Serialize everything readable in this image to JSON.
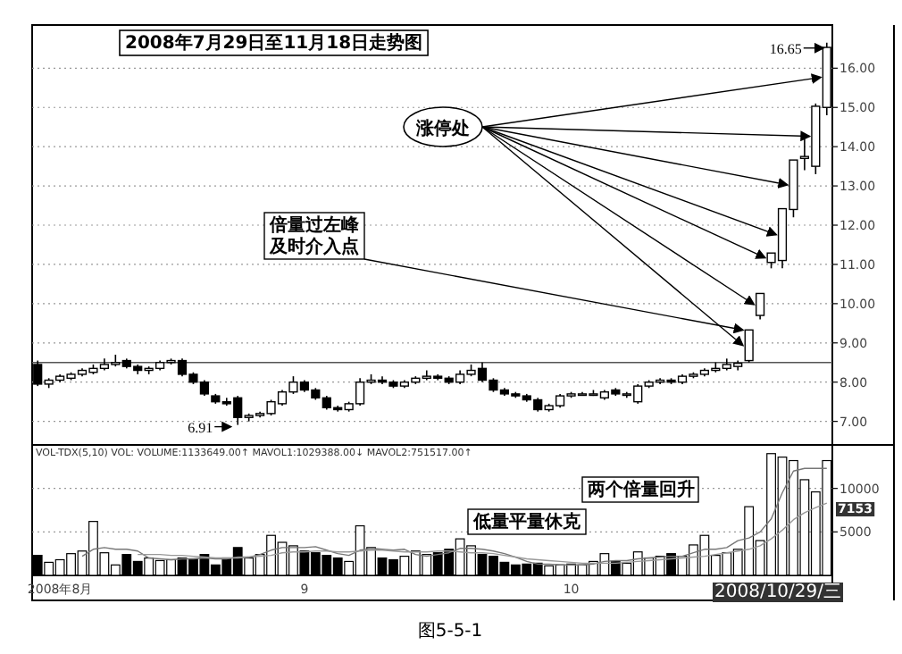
{
  "chart_data": [
    {
      "type": "candlestick",
      "title": "2008年7月29日至11月18日走势图",
      "categories": [
        null,
        null,
        null,
        null,
        null,
        null,
        null,
        null,
        null,
        null,
        null,
        null,
        null,
        null,
        null,
        null,
        null,
        null,
        null,
        null,
        null,
        null,
        null,
        null,
        null,
        null,
        null,
        null,
        null,
        null,
        null,
        null,
        null,
        null,
        null,
        null,
        null,
        null,
        null,
        null,
        null,
        null,
        null,
        null,
        null,
        null,
        null,
        null,
        null,
        null,
        null,
        null,
        null,
        null,
        null,
        null,
        null,
        null,
        null,
        null,
        null,
        null,
        null,
        null,
        null,
        null,
        null,
        null,
        null,
        null,
        null,
        null
      ],
      "ohlc": [
        [
          8.45,
          8.55,
          7.9,
          7.95
        ],
        [
          7.95,
          8.1,
          7.85,
          8.05
        ],
        [
          8.05,
          8.2,
          8.0,
          8.15
        ],
        [
          8.1,
          8.25,
          8.05,
          8.2
        ],
        [
          8.2,
          8.35,
          8.15,
          8.3
        ],
        [
          8.25,
          8.45,
          8.2,
          8.35
        ],
        [
          8.35,
          8.6,
          8.3,
          8.45
        ],
        [
          8.45,
          8.7,
          8.4,
          8.5
        ],
        [
          8.55,
          8.6,
          8.35,
          8.4
        ],
        [
          8.4,
          8.45,
          8.2,
          8.3
        ],
        [
          8.3,
          8.4,
          8.2,
          8.35
        ],
        [
          8.35,
          8.55,
          8.3,
          8.5
        ],
        [
          8.5,
          8.6,
          8.45,
          8.55
        ],
        [
          8.55,
          8.6,
          8.15,
          8.2
        ],
        [
          8.2,
          8.25,
          7.95,
          8.0
        ],
        [
          8.0,
          8.05,
          7.65,
          7.7
        ],
        [
          7.65,
          7.7,
          7.45,
          7.5
        ],
        [
          7.5,
          7.6,
          7.4,
          7.45
        ],
        [
          7.6,
          7.65,
          6.91,
          7.1
        ],
        [
          7.1,
          7.2,
          7.0,
          7.15
        ],
        [
          7.15,
          7.25,
          7.1,
          7.2
        ],
        [
          7.2,
          7.55,
          7.15,
          7.5
        ],
        [
          7.45,
          7.8,
          7.4,
          7.75
        ],
        [
          7.75,
          8.15,
          7.7,
          8.0
        ],
        [
          8.0,
          8.05,
          7.75,
          7.8
        ],
        [
          7.8,
          7.85,
          7.55,
          7.6
        ],
        [
          7.6,
          7.65,
          7.3,
          7.35
        ],
        [
          7.35,
          7.4,
          7.25,
          7.3
        ],
        [
          7.3,
          7.5,
          7.25,
          7.45
        ],
        [
          7.45,
          8.1,
          7.4,
          8.0
        ],
        [
          8.0,
          8.2,
          7.95,
          8.05
        ],
        [
          8.05,
          8.15,
          7.95,
          8.0
        ],
        [
          8.0,
          8.05,
          7.85,
          7.9
        ],
        [
          7.9,
          8.05,
          7.85,
          8.0
        ],
        [
          8.0,
          8.15,
          7.95,
          8.1
        ],
        [
          8.1,
          8.3,
          8.05,
          8.15
        ],
        [
          8.15,
          8.2,
          8.05,
          8.1
        ],
        [
          8.1,
          8.15,
          7.95,
          8.0
        ],
        [
          8.0,
          8.3,
          7.95,
          8.2
        ],
        [
          8.2,
          8.45,
          8.15,
          8.3
        ],
        [
          8.35,
          8.5,
          8.0,
          8.05
        ],
        [
          8.05,
          8.1,
          7.75,
          7.8
        ],
        [
          7.8,
          7.85,
          7.65,
          7.7
        ],
        [
          7.7,
          7.75,
          7.6,
          7.65
        ],
        [
          7.65,
          7.7,
          7.5,
          7.55
        ],
        [
          7.55,
          7.6,
          7.25,
          7.3
        ],
        [
          7.3,
          7.45,
          7.25,
          7.4
        ],
        [
          7.4,
          7.7,
          7.35,
          7.65
        ],
        [
          7.65,
          7.75,
          7.6,
          7.7
        ],
        [
          7.7,
          7.75,
          7.65,
          7.7
        ],
        [
          7.7,
          7.8,
          7.65,
          7.7
        ],
        [
          7.6,
          7.8,
          7.55,
          7.75
        ],
        [
          7.8,
          7.85,
          7.65,
          7.7
        ],
        [
          7.7,
          7.75,
          7.6,
          7.7
        ],
        [
          7.5,
          7.95,
          7.45,
          7.9
        ],
        [
          7.9,
          8.05,
          7.85,
          8.0
        ],
        [
          8.0,
          8.1,
          7.95,
          8.05
        ],
        [
          8.05,
          8.1,
          7.95,
          8.0
        ],
        [
          8.0,
          8.2,
          7.95,
          8.15
        ],
        [
          8.15,
          8.25,
          8.1,
          8.2
        ],
        [
          8.2,
          8.35,
          8.15,
          8.3
        ],
        [
          8.3,
          8.5,
          8.25,
          8.35
        ],
        [
          8.35,
          8.6,
          8.3,
          8.45
        ],
        [
          8.4,
          8.55,
          8.3,
          8.48
        ],
        [
          8.55,
          9.33,
          8.5,
          9.33
        ],
        [
          9.7,
          10.26,
          9.6,
          10.26
        ],
        [
          11.05,
          11.29,
          10.9,
          11.29
        ],
        [
          11.1,
          12.42,
          10.9,
          12.42
        ],
        [
          12.4,
          13.66,
          12.2,
          13.66
        ],
        [
          13.7,
          14.2,
          13.4,
          13.75
        ],
        [
          13.5,
          15.1,
          13.3,
          15.03
        ],
        [
          15.0,
          16.65,
          14.8,
          16.53
        ]
      ],
      "ylim": [
        6.4,
        17.1
      ],
      "yticks": [
        {
          "value": 7,
          "label": "7.00"
        },
        {
          "value": 8,
          "label": "8.00"
        },
        {
          "value": 9,
          "label": "9.00"
        },
        {
          "value": 10,
          "label": "10.00"
        },
        {
          "value": 11,
          "label": "11.00"
        },
        {
          "value": 12,
          "label": "12.00"
        },
        {
          "value": 13,
          "label": "13.00"
        },
        {
          "value": 14,
          "label": "14.00"
        },
        {
          "value": 15,
          "label": "15.00"
        },
        {
          "value": 16,
          "label": "16.00"
        }
      ],
      "grid": "y",
      "tick_labels": "y",
      "ref_lines": [
        {
          "axis": "y",
          "value": 8.5
        }
      ],
      "annotations": [
        "涨停处",
        "倍量过左峰及时介入点",
        "6.91",
        "16.65"
      ]
    },
    {
      "type": "bar",
      "subtitle": "VOL-TDX(5,10) VOL: VOLUME:1133649.00↑ MAVOL1:1029388.00↓ MAVOL2:751517.00↑",
      "categories": [
        null,
        null,
        "2008年8月",
        null,
        null,
        null,
        null,
        null,
        null,
        null,
        null,
        null,
        null,
        null,
        null,
        null,
        null,
        null,
        null,
        null,
        null,
        null,
        null,
        null,
        "9",
        null,
        null,
        null,
        null,
        null,
        null,
        null,
        null,
        null,
        null,
        null,
        null,
        null,
        null,
        null,
        null,
        null,
        null,
        null,
        null,
        null,
        null,
        null,
        "10",
        null,
        null,
        null,
        null,
        null,
        null,
        null,
        null,
        null,
        null,
        null,
        null,
        null,
        null,
        null,
        null,
        null,
        null,
        null,
        null,
        null,
        null,
        null
      ],
      "series": [
        {
          "values": [
            2300,
            1500,
            1800,
            2500,
            2800,
            6200,
            2600,
            1200,
            2400,
            1600,
            2000,
            1700,
            1800,
            2000,
            1900,
            2400,
            1200,
            2000,
            3200,
            2000,
            2400,
            4600,
            3800,
            3400,
            2800,
            2600,
            2300,
            2000,
            1600,
            5700,
            3200,
            2000,
            1800,
            2200,
            2800,
            2400,
            2600,
            3000,
            4200,
            3400,
            2400,
            2200,
            1500,
            1200,
            1300,
            1400,
            1100,
            1200,
            1300,
            1200,
            1600,
            2500,
            1600,
            1400,
            2700,
            2000,
            2200,
            2500,
            2200,
            3500,
            4600,
            2300,
            2600,
            3000,
            7900,
            4000,
            14000,
            13600,
            13200,
            11000,
            9600,
            13200
          ],
          "colors": [
            "#000000",
            "#ffffff",
            "#ffffff",
            "#ffffff",
            "#ffffff",
            "#ffffff",
            "#ffffff",
            "#ffffff",
            "#000000",
            "#000000",
            "#ffffff",
            "#ffffff",
            "#ffffff",
            "#000000",
            "#000000",
            "#000000",
            "#000000",
            "#000000",
            "#000000",
            "#ffffff",
            "#ffffff",
            "#ffffff",
            "#ffffff",
            "#ffffff",
            "#000000",
            "#000000",
            "#000000",
            "#000000",
            "#ffffff",
            "#ffffff",
            "#ffffff",
            "#000000",
            "#000000",
            "#ffffff",
            "#ffffff",
            "#ffffff",
            "#000000",
            "#000000",
            "#ffffff",
            "#ffffff",
            "#000000",
            "#000000",
            "#000000",
            "#000000",
            "#000000",
            "#000000",
            "#ffffff",
            "#ffffff",
            "#ffffff",
            "#ffffff",
            "#ffffff",
            "#ffffff",
            "#000000",
            "#ffffff",
            "#ffffff",
            "#ffffff",
            "#ffffff",
            "#000000",
            "#ffffff",
            "#ffffff",
            "#ffffff",
            "#ffffff",
            "#ffffff",
            "#ffffff",
            "#ffffff",
            "#ffffff",
            "#ffffff",
            "#ffffff",
            "#ffffff",
            "#ffffff",
            "#ffffff",
            "#ffffff"
          ]
        },
        {
          "type": "line",
          "color": "#777777",
          "values": [
            null,
            null,
            null,
            null,
            2200,
            3000,
            3200,
            3000,
            3000,
            2800,
            2000,
            1900,
            1800,
            1900,
            1900,
            2000,
            1900,
            1900,
            2100,
            2100,
            2400,
            2900,
            3200,
            3200,
            3200,
            3300,
            2900,
            2500,
            2300,
            2900,
            3100,
            3000,
            2900,
            3000,
            2400,
            2200,
            2400,
            2600,
            3100,
            3100,
            3000,
            2800,
            2500,
            2100,
            1600,
            1300,
            1300,
            1200,
            1200,
            1200,
            1300,
            1600,
            1700,
            1700,
            1900,
            2000,
            2100,
            2200,
            2200,
            2600,
            3000,
            3000,
            3200,
            4000,
            4300,
            5000,
            6500,
            9500,
            12000,
            12300,
            12300,
            12300
          ]
        },
        {
          "type": "line",
          "color": "#999999",
          "values": [
            null,
            null,
            null,
            null,
            null,
            null,
            null,
            null,
            null,
            2400,
            2400,
            2400,
            2300,
            2300,
            2200,
            2100,
            2000,
            2000,
            2000,
            2100,
            2200,
            2300,
            2600,
            2700,
            2700,
            2800,
            2800,
            2700,
            2700,
            2800,
            2900,
            2900,
            2800,
            2700,
            2700,
            2700,
            2800,
            2800,
            2700,
            2600,
            2600,
            2500,
            2300,
            2100,
            1900,
            1800,
            1700,
            1600,
            1500,
            1400,
            1400,
            1400,
            1400,
            1500,
            1600,
            1700,
            1800,
            1900,
            2000,
            2100,
            2200,
            2400,
            2600,
            2800,
            3000,
            3400,
            4200,
            5200,
            6400,
            7200,
            7800,
            8300
          ]
        }
      ],
      "ylim": [
        0,
        15000
      ],
      "yticks": [
        5000,
        10000
      ],
      "grid": "y",
      "annotations": [
        "两个倍量回升",
        "低量平量休克",
        "7153",
        "2008/10/29/三",
        "图5-5-1"
      ]
    }
  ]
}
